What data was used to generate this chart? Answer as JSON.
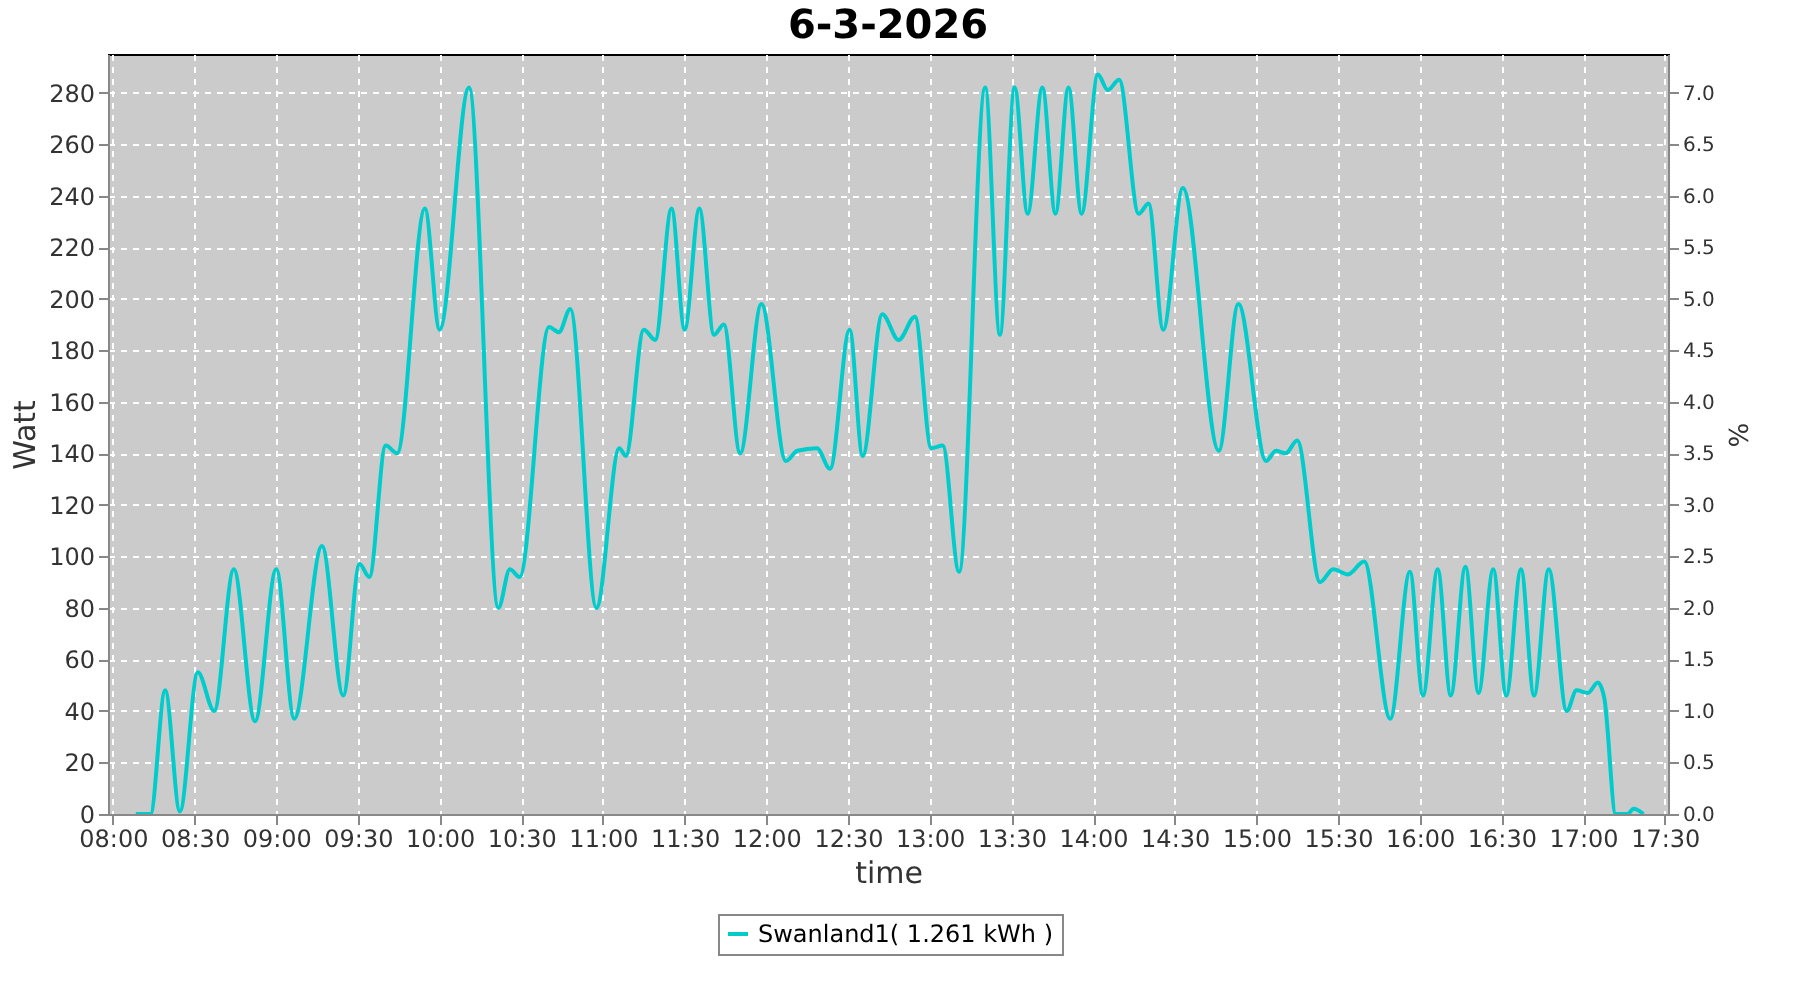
{
  "chart_data": {
    "type": "line",
    "title": "6-3-2026",
    "xlabel": "time",
    "ylabel": "Watt",
    "y2label": "%",
    "series": [
      {
        "name": "Swanland1( 1.261 kWh )",
        "color": "#00cccc",
        "x": [
          8.14,
          8.23,
          8.32,
          8.41,
          8.52,
          8.62,
          8.74,
          8.87,
          9.0,
          9.11,
          9.28,
          9.41,
          9.51,
          9.57,
          9.67,
          9.74,
          9.91,
          10.0,
          10.18,
          10.36,
          10.43,
          10.49,
          10.67,
          10.73,
          10.8,
          10.96,
          11.1,
          11.14,
          11.25,
          11.32,
          11.42,
          11.5,
          11.59,
          11.68,
          11.74,
          11.84,
          11.97,
          12.12,
          12.19,
          12.31,
          12.39,
          12.51,
          12.59,
          12.71,
          12.81,
          12.91,
          13.01,
          13.08,
          13.18,
          13.34,
          13.43,
          13.52,
          13.6,
          13.69,
          13.77,
          13.85,
          13.93,
          14.03,
          14.09,
          14.16,
          14.28,
          14.34,
          14.43,
          14.55,
          14.77,
          14.89,
          15.06,
          15.12,
          15.18,
          15.25,
          15.39,
          15.47,
          15.56,
          15.66,
          15.82,
          15.94,
          16.02,
          16.11,
          16.19,
          16.28,
          16.36,
          16.45,
          16.53,
          16.62,
          16.7,
          16.79,
          16.9,
          16.96,
          17.03,
          17.09,
          17.13,
          17.2,
          17.27,
          17.31,
          17.37
        ],
        "values": [
          0,
          0,
          48,
          1,
          55,
          40,
          95,
          36,
          95,
          37,
          104,
          46,
          97,
          92,
          143,
          140,
          235,
          188,
          282,
          80,
          95,
          92,
          189,
          187,
          196,
          80,
          142,
          139,
          188,
          184,
          235,
          188,
          235,
          186,
          190,
          140,
          198,
          137,
          141,
          142,
          134,
          188,
          139,
          194,
          184,
          193,
          142,
          143,
          94,
          282,
          186,
          282,
          233,
          282,
          233,
          282,
          233,
          287,
          281,
          285,
          233,
          237,
          188,
          243,
          141,
          198,
          137,
          141,
          140,
          145,
          90,
          95,
          93,
          98,
          37,
          94,
          46,
          95,
          46,
          96,
          47,
          95,
          46,
          95,
          46,
          95,
          40,
          48,
          47,
          51,
          45,
          0,
          0,
          2,
          0
        ]
      }
    ],
    "xlim": [
      7.97,
      17.52
    ],
    "xticks": [
      {
        "value": 8,
        "label": "08:00"
      },
      {
        "value": 8.5,
        "label": "08:30"
      },
      {
        "value": 9,
        "label": "09:00"
      },
      {
        "value": 9.5,
        "label": "09:30"
      },
      {
        "value": 10,
        "label": "10:00"
      },
      {
        "value": 10.5,
        "label": "10:30"
      },
      {
        "value": 11,
        "label": "11:00"
      },
      {
        "value": 11.5,
        "label": "11:30"
      },
      {
        "value": 12,
        "label": "12:00"
      },
      {
        "value": 12.5,
        "label": "12:30"
      },
      {
        "value": 13,
        "label": "13:00"
      },
      {
        "value": 13.5,
        "label": "13:30"
      },
      {
        "value": 14,
        "label": "14:00"
      },
      {
        "value": 14.5,
        "label": "14:30"
      },
      {
        "value": 15,
        "label": "15:00"
      },
      {
        "value": 15.5,
        "label": "15:30"
      },
      {
        "value": 16,
        "label": "16:00"
      },
      {
        "value": 16.5,
        "label": "16:30"
      },
      {
        "value": 17,
        "label": "17:00"
      },
      {
        "value": 17.5,
        "label": "17:30"
      }
    ],
    "ylim": [
      0,
      295
    ],
    "yticks": [
      0,
      20,
      40,
      60,
      80,
      100,
      120,
      140,
      160,
      180,
      200,
      220,
      240,
      260,
      280
    ],
    "y2lim": [
      0,
      7.375
    ],
    "y2ticks": [
      {
        "value": 0,
        "label": "0.0"
      },
      {
        "value": 0.5,
        "label": "0.5"
      },
      {
        "value": 1,
        "label": "1.0"
      },
      {
        "value": 1.5,
        "label": "1.5"
      },
      {
        "value": 2,
        "label": "2.0"
      },
      {
        "value": 2.5,
        "label": "2.5"
      },
      {
        "value": 3,
        "label": "3.0"
      },
      {
        "value": 3.5,
        "label": "3.5"
      },
      {
        "value": 4,
        "label": "4.0"
      },
      {
        "value": 4.5,
        "label": "4.5"
      },
      {
        "value": 5,
        "label": "5.0"
      },
      {
        "value": 5.5,
        "label": "5.5"
      },
      {
        "value": 6,
        "label": "6.0"
      },
      {
        "value": 6.5,
        "label": "6.5"
      },
      {
        "value": 7,
        "label": "7.0"
      }
    ],
    "grid": true,
    "legend": "bottom",
    "line_style": "solid",
    "marker": "none"
  }
}
